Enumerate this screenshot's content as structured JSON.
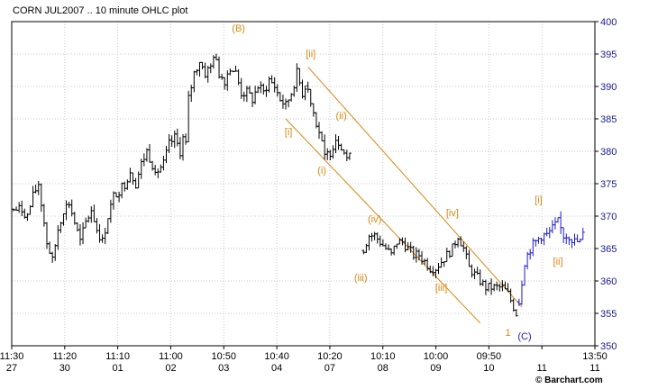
{
  "chart_data": {
    "type": "ohlc",
    "title": "CORN JUL2007 .. 10 minute OHLC plot",
    "credit": "© Barchart.com",
    "ylim": [
      350,
      400
    ],
    "yticks": [
      350,
      355,
      360,
      365,
      370,
      375,
      380,
      385,
      390,
      395,
      400
    ],
    "grid": true,
    "x_ticks": [
      {
        "time": "11:30",
        "date": "27"
      },
      {
        "time": "11:20",
        "date": "30"
      },
      {
        "time": "11:10",
        "date": "01"
      },
      {
        "time": "11:00",
        "date": "02"
      },
      {
        "time": "10:50",
        "date": "03"
      },
      {
        "time": "10:40",
        "date": "04"
      },
      {
        "time": "10:20",
        "date": "07"
      },
      {
        "time": "10:10",
        "date": "08"
      },
      {
        "time": "10:00",
        "date": "09"
      },
      {
        "time": "09:50",
        "date": "10"
      },
      {
        "time": "",
        "date": "11"
      },
      {
        "time": "13:50",
        "date": "11"
      }
    ],
    "series": [
      {
        "color": "#000000",
        "anchors": [
          [
            0,
            371
          ],
          [
            3,
            371
          ],
          [
            5,
            370
          ],
          [
            7,
            373
          ],
          [
            9,
            375
          ],
          [
            10,
            372
          ],
          [
            12,
            366
          ],
          [
            14,
            363
          ],
          [
            16,
            368
          ],
          [
            18,
            371
          ],
          [
            20,
            372
          ],
          [
            22,
            369
          ],
          [
            24,
            366
          ],
          [
            26,
            369
          ],
          [
            28,
            371
          ],
          [
            30,
            368
          ],
          [
            32,
            366
          ],
          [
            34,
            370
          ],
          [
            36,
            373
          ],
          [
            38,
            374
          ],
          [
            40,
            375
          ],
          [
            42,
            377
          ],
          [
            44,
            375
          ],
          [
            46,
            378
          ],
          [
            48,
            380
          ],
          [
            50,
            378
          ],
          [
            52,
            377
          ],
          [
            54,
            378
          ],
          [
            56,
            381
          ],
          [
            58,
            382
          ],
          [
            60,
            380
          ],
          [
            61,
            382
          ],
          [
            62,
            381
          ],
          [
            63,
            388
          ],
          [
            65,
            392
          ],
          [
            67,
            394
          ],
          [
            69,
            392
          ],
          [
            71,
            393
          ],
          [
            72,
            395
          ],
          [
            74,
            392
          ],
          [
            76,
            391
          ],
          [
            78,
            393
          ],
          [
            80,
            392
          ],
          [
            82,
            389
          ],
          [
            84,
            389
          ],
          [
            86,
            388
          ],
          [
            88,
            390
          ],
          [
            90,
            389
          ],
          [
            92,
            391
          ],
          [
            94,
            390
          ],
          [
            96,
            388
          ],
          [
            98,
            387
          ],
          [
            100,
            389
          ],
          [
            102,
            392
          ],
          [
            104,
            389
          ],
          [
            106,
            391
          ]
        ],
        "noise": 1.0
      },
      {
        "color": "#000000",
        "anchors": [
          [
            106,
            390
          ],
          [
            108,
            386
          ],
          [
            110,
            383
          ],
          [
            112,
            379
          ],
          [
            114,
            380
          ],
          [
            116,
            382
          ],
          [
            118,
            381
          ],
          [
            120,
            379
          ],
          [
            122,
            379
          ]
        ],
        "noise": 1.0
      },
      {
        "color": "#000000",
        "anchors": [
          [
            126,
            365
          ],
          [
            128,
            367
          ],
          [
            130,
            367
          ],
          [
            132,
            366
          ],
          [
            134,
            365
          ],
          [
            136,
            364
          ],
          [
            138,
            366
          ],
          [
            140,
            366
          ],
          [
            142,
            365
          ],
          [
            144,
            364
          ],
          [
            146,
            364
          ],
          [
            148,
            363
          ],
          [
            150,
            362
          ],
          [
            152,
            362
          ],
          [
            154,
            363
          ],
          [
            156,
            364
          ],
          [
            158,
            365
          ],
          [
            160,
            367
          ],
          [
            162,
            365
          ],
          [
            164,
            362
          ],
          [
            166,
            361
          ],
          [
            168,
            360
          ],
          [
            170,
            359
          ],
          [
            172,
            359
          ],
          [
            174,
            359
          ],
          [
            176,
            359
          ],
          [
            178,
            358
          ],
          [
            180,
            356
          ],
          [
            182,
            354
          ]
        ],
        "noise": 0.9
      },
      {
        "color": "#1a1acc",
        "anchors": [
          [
            182,
            357
          ],
          [
            184,
            363
          ],
          [
            186,
            365
          ],
          [
            188,
            366
          ],
          [
            190,
            367
          ],
          [
            192,
            367
          ],
          [
            194,
            368
          ],
          [
            196,
            369
          ],
          [
            198,
            367
          ],
          [
            200,
            367
          ],
          [
            202,
            366
          ],
          [
            204,
            366
          ],
          [
            206,
            368
          ]
        ],
        "noise": 1.0
      }
    ],
    "trend_lines": [
      {
        "name": "upper",
        "color": "#d8860f",
        "from": [
          106,
          393
        ],
        "to": [
          183,
          356
        ]
      },
      {
        "name": "lower",
        "color": "#d8860f",
        "from": [
          98,
          385
        ],
        "to": [
          168,
          353.5
        ]
      }
    ],
    "wave_labels": [
      {
        "text": "(B)",
        "color": "#d8860f",
        "x": 81,
        "y": 398.5
      },
      {
        "text": "[ii]",
        "color": "#d8860f",
        "x": 107,
        "y": 394.5
      },
      {
        "text": "[i]",
        "color": "#d8860f",
        "x": 99,
        "y": 382.5
      },
      {
        "text": "(ii)",
        "color": "#d8860f",
        "x": 118,
        "y": 385
      },
      {
        "text": "(i)",
        "color": "#d8860f",
        "x": 111,
        "y": 376.5
      },
      {
        "text": "(iv)",
        "color": "#d8860f",
        "x": 130,
        "y": 369
      },
      {
        "text": "[iv]",
        "color": "#d8860f",
        "x": 158,
        "y": 370
      },
      {
        "text": "(iii)",
        "color": "#d8860f",
        "x": 125,
        "y": 360
      },
      {
        "text": "[iii]",
        "color": "#d8860f",
        "x": 154,
        "y": 358.5
      },
      {
        "text": "1",
        "color": "#d8860f",
        "x": 178,
        "y": 351.5
      },
      {
        "text": "(C)",
        "color": "#1a1acc",
        "x": 184,
        "y": 351
      },
      {
        "text": "[i]",
        "color": "#d8860f",
        "x": 189,
        "y": 372
      },
      {
        "text": "[ii]",
        "color": "#d8860f",
        "x": 196,
        "y": 362.5
      }
    ],
    "x_range": [
      0,
      208
    ]
  }
}
